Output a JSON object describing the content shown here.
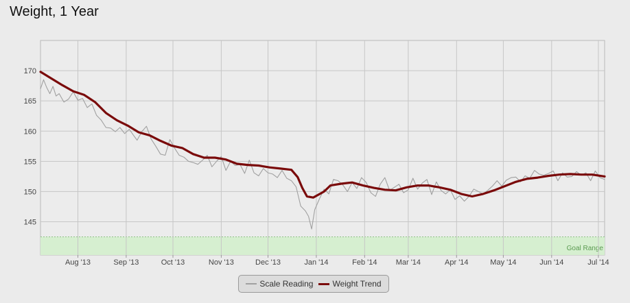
{
  "title": "Weight, 1 Year",
  "legend": {
    "items": [
      {
        "label": "Scale Reading",
        "color": "#a0a0a0"
      },
      {
        "label": "Weight Trend",
        "color": "#7a0a0a"
      }
    ]
  },
  "chart_data": {
    "type": "line",
    "title": "Weight, 1 Year",
    "xlabel": "",
    "ylabel": "",
    "ylim": [
      139.5,
      175
    ],
    "yticks": [
      145,
      150,
      155,
      160,
      165,
      170
    ],
    "xticks": [
      "Aug '13",
      "Sep '13",
      "Oct '13",
      "Nov '13",
      "Dec '13",
      "Jan '14",
      "Feb '14",
      "Mar '14",
      "Apr '14",
      "May '14",
      "Jun '14",
      "Jul '14"
    ],
    "x_range": [
      "2013-07-08",
      "2014-07-05"
    ],
    "grid": true,
    "legend_position": "bottom-center",
    "goal_range": {
      "label": "Goal Range",
      "from": 139.5,
      "to": 142.5,
      "color": "#d6efd0"
    },
    "series": [
      {
        "name": "Scale Reading",
        "color": "#a0a0a0",
        "points": [
          [
            "2013-07-08",
            167.0
          ],
          [
            "2013-07-10",
            168.5
          ],
          [
            "2013-07-12",
            167.2
          ],
          [
            "2013-07-14",
            166.2
          ],
          [
            "2013-07-16",
            167.4
          ],
          [
            "2013-07-18",
            165.8
          ],
          [
            "2013-07-20",
            166.2
          ],
          [
            "2013-07-23",
            164.8
          ],
          [
            "2013-07-26",
            165.3
          ],
          [
            "2013-07-29",
            166.5
          ],
          [
            "2013-08-01",
            165.1
          ],
          [
            "2013-08-04",
            165.4
          ],
          [
            "2013-08-07",
            163.9
          ],
          [
            "2013-08-10",
            164.5
          ],
          [
            "2013-08-13",
            162.6
          ],
          [
            "2013-08-16",
            161.8
          ],
          [
            "2013-08-19",
            160.6
          ],
          [
            "2013-08-22",
            160.5
          ],
          [
            "2013-08-25",
            159.9
          ],
          [
            "2013-08-28",
            160.6
          ],
          [
            "2013-08-31",
            159.6
          ],
          [
            "2013-09-03",
            160.3
          ],
          [
            "2013-09-06",
            159.2
          ],
          [
            "2013-09-08",
            158.5
          ],
          [
            "2013-09-11",
            159.9
          ],
          [
            "2013-09-14",
            160.8
          ],
          [
            "2013-09-17",
            158.7
          ],
          [
            "2013-09-20",
            157.5
          ],
          [
            "2013-09-23",
            156.2
          ],
          [
            "2013-09-26",
            156.0
          ],
          [
            "2013-09-29",
            158.6
          ],
          [
            "2013-10-02",
            157.2
          ],
          [
            "2013-10-05",
            156.0
          ],
          [
            "2013-10-08",
            155.7
          ],
          [
            "2013-10-11",
            155.0
          ],
          [
            "2013-10-14",
            154.8
          ],
          [
            "2013-10-17",
            154.5
          ],
          [
            "2013-10-20",
            155.2
          ],
          [
            "2013-10-23",
            156.0
          ],
          [
            "2013-10-26",
            154.1
          ],
          [
            "2013-10-29",
            155.0
          ],
          [
            "2013-11-01",
            155.8
          ],
          [
            "2013-11-04",
            153.5
          ],
          [
            "2013-11-07",
            155.0
          ],
          [
            "2013-11-10",
            154.3
          ],
          [
            "2013-11-13",
            154.5
          ],
          [
            "2013-11-16",
            153.0
          ],
          [
            "2013-11-19",
            155.2
          ],
          [
            "2013-11-22",
            153.1
          ],
          [
            "2013-11-25",
            152.6
          ],
          [
            "2013-11-28",
            153.8
          ],
          [
            "2013-12-01",
            153.1
          ],
          [
            "2013-12-04",
            152.9
          ],
          [
            "2013-12-07",
            152.3
          ],
          [
            "2013-12-10",
            153.5
          ],
          [
            "2013-12-13",
            152.2
          ],
          [
            "2013-12-16",
            151.8
          ],
          [
            "2013-12-19",
            150.8
          ],
          [
            "2013-12-22",
            147.6
          ],
          [
            "2013-12-25",
            146.8
          ],
          [
            "2013-12-27",
            145.9
          ],
          [
            "2013-12-29",
            143.8
          ],
          [
            "2013-12-31",
            147.0
          ],
          [
            "2014-01-03",
            148.8
          ],
          [
            "2014-01-06",
            150.4
          ],
          [
            "2014-01-09",
            149.6
          ],
          [
            "2014-01-12",
            152.0
          ],
          [
            "2014-01-15",
            151.8
          ],
          [
            "2014-01-18",
            151.1
          ],
          [
            "2014-01-21",
            150.0
          ],
          [
            "2014-01-24",
            151.5
          ],
          [
            "2014-01-27",
            150.5
          ],
          [
            "2014-01-30",
            152.3
          ],
          [
            "2014-02-02",
            151.5
          ],
          [
            "2014-02-05",
            149.8
          ],
          [
            "2014-02-08",
            149.2
          ],
          [
            "2014-02-11",
            151.2
          ],
          [
            "2014-02-14",
            152.3
          ],
          [
            "2014-02-17",
            150.2
          ],
          [
            "2014-02-20",
            150.7
          ],
          [
            "2014-02-23",
            151.2
          ],
          [
            "2014-02-26",
            149.8
          ],
          [
            "2014-03-01",
            150.3
          ],
          [
            "2014-03-04",
            152.2
          ],
          [
            "2014-03-07",
            150.4
          ],
          [
            "2014-03-10",
            151.4
          ],
          [
            "2014-03-13",
            152.0
          ],
          [
            "2014-03-16",
            149.5
          ],
          [
            "2014-03-19",
            151.6
          ],
          [
            "2014-03-22",
            150.2
          ],
          [
            "2014-03-25",
            149.6
          ],
          [
            "2014-03-28",
            150.3
          ],
          [
            "2014-03-31",
            148.7
          ],
          [
            "2014-04-03",
            149.3
          ],
          [
            "2014-04-06",
            148.4
          ],
          [
            "2014-04-09",
            149.2
          ],
          [
            "2014-04-12",
            150.4
          ],
          [
            "2014-04-15",
            150.0
          ],
          [
            "2014-04-18",
            149.6
          ],
          [
            "2014-04-21",
            150.2
          ],
          [
            "2014-04-24",
            150.9
          ],
          [
            "2014-04-27",
            151.8
          ],
          [
            "2014-04-30",
            150.9
          ],
          [
            "2014-05-03",
            151.9
          ],
          [
            "2014-05-06",
            152.3
          ],
          [
            "2014-05-09",
            152.4
          ],
          [
            "2014-05-12",
            151.6
          ],
          [
            "2014-05-15",
            152.6
          ],
          [
            "2014-05-18",
            152.2
          ],
          [
            "2014-05-21",
            153.5
          ],
          [
            "2014-05-24",
            152.9
          ],
          [
            "2014-05-27",
            152.7
          ],
          [
            "2014-05-30",
            153.0
          ],
          [
            "2014-06-02",
            153.4
          ],
          [
            "2014-06-05",
            151.8
          ],
          [
            "2014-06-08",
            153.1
          ],
          [
            "2014-06-11",
            152.4
          ],
          [
            "2014-06-14",
            152.5
          ],
          [
            "2014-06-17",
            153.3
          ],
          [
            "2014-06-20",
            152.7
          ],
          [
            "2014-06-23",
            153.1
          ],
          [
            "2014-06-26",
            151.8
          ],
          [
            "2014-06-29",
            153.4
          ],
          [
            "2014-07-02",
            152.3
          ],
          [
            "2014-07-05",
            152.0
          ]
        ]
      },
      {
        "name": "Weight Trend",
        "color": "#7a0a0a",
        "points": [
          [
            "2013-07-08",
            169.8
          ],
          [
            "2013-07-15",
            168.7
          ],
          [
            "2013-07-22",
            167.6
          ],
          [
            "2013-07-29",
            166.6
          ],
          [
            "2013-08-05",
            166.0
          ],
          [
            "2013-08-12",
            164.8
          ],
          [
            "2013-08-19",
            163.0
          ],
          [
            "2013-08-26",
            161.8
          ],
          [
            "2013-09-02",
            160.9
          ],
          [
            "2013-09-09",
            159.8
          ],
          [
            "2013-09-16",
            159.3
          ],
          [
            "2013-09-23",
            158.4
          ],
          [
            "2013-09-30",
            157.6
          ],
          [
            "2013-10-07",
            157.2
          ],
          [
            "2013-10-14",
            156.2
          ],
          [
            "2013-10-21",
            155.6
          ],
          [
            "2013-10-28",
            155.6
          ],
          [
            "2013-11-04",
            155.3
          ],
          [
            "2013-11-11",
            154.6
          ],
          [
            "2013-11-18",
            154.4
          ],
          [
            "2013-11-25",
            154.3
          ],
          [
            "2013-12-02",
            154.0
          ],
          [
            "2013-12-09",
            153.8
          ],
          [
            "2013-12-16",
            153.6
          ],
          [
            "2013-12-20",
            152.4
          ],
          [
            "2013-12-23",
            150.6
          ],
          [
            "2013-12-26",
            149.2
          ],
          [
            "2013-12-30",
            149.0
          ],
          [
            "2014-01-06",
            150.0
          ],
          [
            "2014-01-10",
            151.0
          ],
          [
            "2014-01-17",
            151.3
          ],
          [
            "2014-01-24",
            151.5
          ],
          [
            "2014-01-31",
            151.0
          ],
          [
            "2014-02-07",
            150.6
          ],
          [
            "2014-02-14",
            150.3
          ],
          [
            "2014-02-21",
            150.2
          ],
          [
            "2014-02-28",
            150.7
          ],
          [
            "2014-03-07",
            151.0
          ],
          [
            "2014-03-14",
            151.0
          ],
          [
            "2014-03-21",
            150.7
          ],
          [
            "2014-03-28",
            150.3
          ],
          [
            "2014-04-04",
            149.6
          ],
          [
            "2014-04-11",
            149.2
          ],
          [
            "2014-04-18",
            149.6
          ],
          [
            "2014-04-25",
            150.2
          ],
          [
            "2014-05-02",
            150.9
          ],
          [
            "2014-05-09",
            151.6
          ],
          [
            "2014-05-16",
            152.1
          ],
          [
            "2014-05-23",
            152.3
          ],
          [
            "2014-05-30",
            152.6
          ],
          [
            "2014-06-06",
            152.8
          ],
          [
            "2014-06-13",
            152.9
          ],
          [
            "2014-06-20",
            152.8
          ],
          [
            "2014-06-27",
            152.8
          ],
          [
            "2014-07-05",
            152.5
          ]
        ]
      }
    ]
  }
}
